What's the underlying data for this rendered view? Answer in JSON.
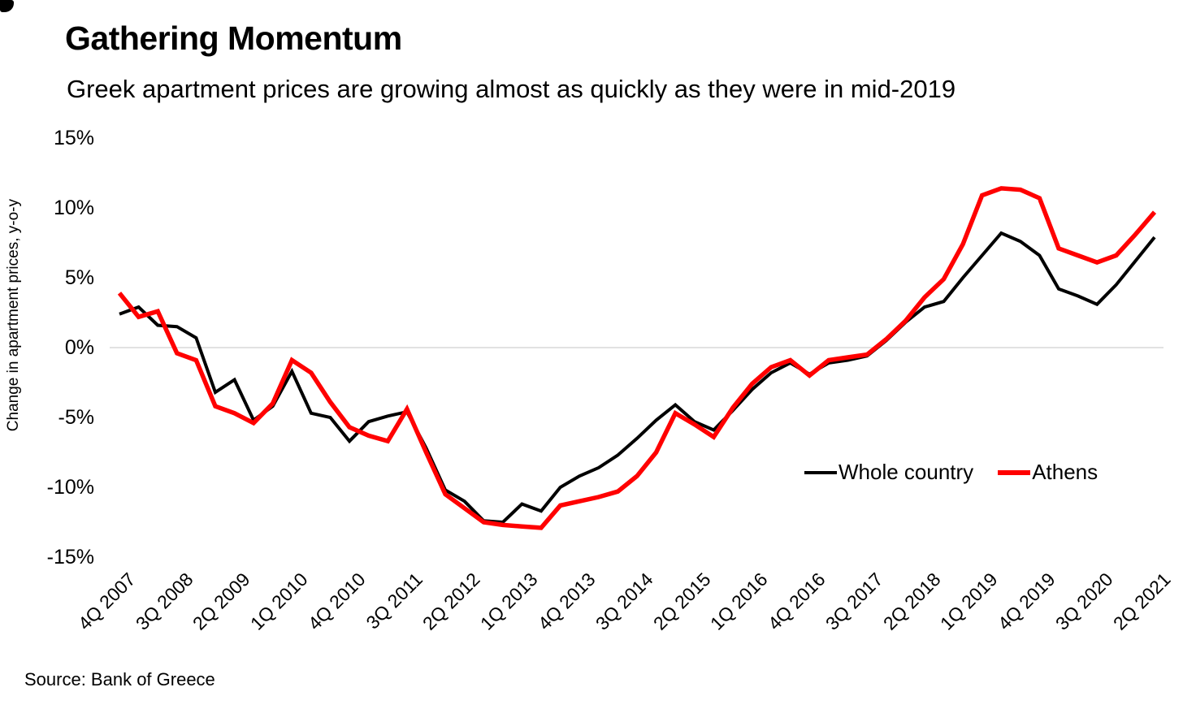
{
  "header": {
    "title": "Gathering Momentum",
    "subtitle": "Greek apartment prices are growing almost as quickly as they were in mid-2019"
  },
  "footer": {
    "source": "Source: Bank of Greece"
  },
  "chart_data": {
    "type": "line",
    "title": "Gathering Momentum",
    "subtitle": "Greek apartment prices are growing almost as quickly as they were in mid-2019",
    "xlabel": "",
    "ylabel": "Change in apartment prices, y-o-y",
    "ylim": [
      -15,
      15
    ],
    "ytick_values": [
      15,
      10,
      5,
      0,
      -5,
      -10,
      -15
    ],
    "ytick_labels": [
      "15%",
      "10%",
      "5%",
      "0%",
      "-5%",
      "-10%",
      "-15%"
    ],
    "grid": "horizontal zero line only",
    "gridline_color": "#d9d9d9",
    "legend_position": "inside lower right",
    "x_tick_every": 3,
    "x_tick_labels": [
      "4Q 2007",
      "3Q 2008",
      "2Q 2009",
      "1Q 2010",
      "4Q 2010",
      "3Q 2011",
      "2Q 2012",
      "1Q 2013",
      "4Q 2013",
      "3Q 2014",
      "2Q 2015",
      "1Q 2016",
      "4Q 2016",
      "3Q 2017",
      "2Q 2018",
      "1Q 2019",
      "4Q 2019",
      "3Q 2020",
      "2Q 2021"
    ],
    "categories": [
      "4Q 2007",
      "1Q 2008",
      "2Q 2008",
      "3Q 2008",
      "4Q 2008",
      "1Q 2009",
      "2Q 2009",
      "3Q 2009",
      "4Q 2009",
      "1Q 2010",
      "2Q 2010",
      "3Q 2010",
      "4Q 2010",
      "1Q 2011",
      "2Q 2011",
      "3Q 2011",
      "4Q 2011",
      "1Q 2012",
      "2Q 2012",
      "3Q 2012",
      "4Q 2012",
      "1Q 2013",
      "2Q 2013",
      "3Q 2013",
      "4Q 2013",
      "1Q 2014",
      "2Q 2014",
      "3Q 2014",
      "4Q 2014",
      "1Q 2015",
      "2Q 2015",
      "3Q 2015",
      "4Q 2015",
      "1Q 2016",
      "2Q 2016",
      "3Q 2016",
      "4Q 2016",
      "1Q 2017",
      "2Q 2017",
      "3Q 2017",
      "4Q 2017",
      "1Q 2018",
      "2Q 2018",
      "3Q 2018",
      "4Q 2018",
      "1Q 2019",
      "2Q 2019",
      "3Q 2019",
      "4Q 2019",
      "1Q 2020",
      "2Q 2020",
      "3Q 2020",
      "4Q 2020",
      "1Q 2021",
      "2Q 2021"
    ],
    "series": [
      {
        "name": "Whole country",
        "color": "#000000",
        "stroke_width": 4,
        "values": [
          2.4,
          2.9,
          1.6,
          1.5,
          0.7,
          -3.2,
          -2.3,
          -5.2,
          -4.2,
          -1.7,
          -4.7,
          -5.0,
          -6.7,
          -5.3,
          -4.9,
          -4.6,
          -7.2,
          -10.2,
          -11.0,
          -12.4,
          -12.5,
          -11.2,
          -11.7,
          -10.0,
          -9.2,
          -8.6,
          -7.7,
          -6.5,
          -5.2,
          -4.1,
          -5.3,
          -5.9,
          -4.5,
          -3.0,
          -1.8,
          -1.1,
          -1.9,
          -1.1,
          -0.9,
          -0.6,
          0.5,
          1.8,
          2.9,
          3.3,
          5.0,
          6.6,
          8.2,
          7.6,
          6.6,
          4.2,
          3.7,
          3.1,
          4.5,
          6.2,
          7.9
        ]
      },
      {
        "name": "Athens",
        "color": "#ff0000",
        "stroke_width": 5.5,
        "values": [
          3.9,
          2.2,
          2.6,
          -0.4,
          -0.9,
          -4.2,
          -4.7,
          -5.4,
          -4.0,
          -0.9,
          -1.8,
          -3.9,
          -5.7,
          -6.3,
          -6.7,
          -4.4,
          -7.5,
          -10.5,
          -11.5,
          -12.5,
          -12.7,
          -12.8,
          -12.9,
          -11.3,
          -11.0,
          -10.7,
          -10.3,
          -9.2,
          -7.5,
          -4.7,
          -5.5,
          -6.4,
          -4.3,
          -2.6,
          -1.4,
          -0.9,
          -2.0,
          -0.9,
          -0.7,
          -0.5,
          0.6,
          1.9,
          3.6,
          4.9,
          7.4,
          10.9,
          11.4,
          11.3,
          10.7,
          7.1,
          6.6,
          6.1,
          6.6,
          8.1,
          9.7
        ]
      }
    ],
    "source": "Source: Bank of Greece"
  }
}
